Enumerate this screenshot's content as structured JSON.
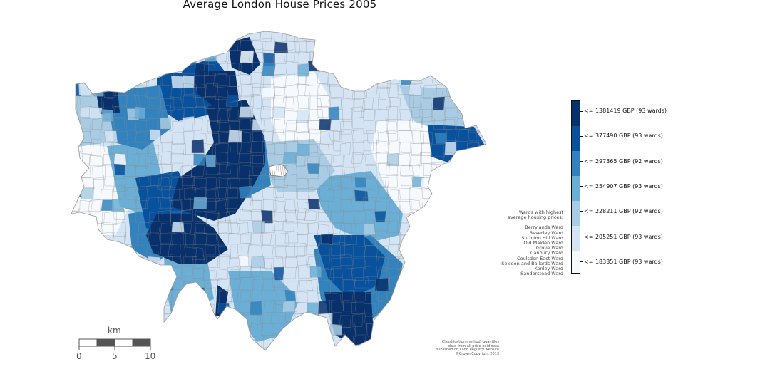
{
  "title": "Average London House Prices 2005",
  "colors": {
    "class1": "#08306b",
    "class2": "#08519c",
    "class3": "#3182bd",
    "class4": "#6baed6",
    "class5": "#a9cce4",
    "class6": "#d4e4f4",
    "class7": "#f6faff",
    "border": "#8a8a8a"
  },
  "legend": {
    "classes": [
      {
        "label": "<= 1381419 GBP (93 wards)",
        "color": "#08306b"
      },
      {
        "label": "<= 377490 GBP (93 wards)",
        "color": "#08519c"
      },
      {
        "label": "<= 297365 GBP (92 wards)",
        "color": "#3182bd"
      },
      {
        "label": "<= 254907 GBP (93 wards)",
        "color": "#6baed6"
      },
      {
        "label": "<= 228211 GBP (92 wards)",
        "color": "#a9cce4"
      },
      {
        "label": "<= 205251 GBP (93 wards)",
        "color": "#d4e4f4"
      },
      {
        "label": "<= 183351 GBP (93 wards)",
        "color": "#f6faff"
      }
    ]
  },
  "wards_note": {
    "heading_line1": "Wards with highest",
    "heading_line2": "average housing prices:",
    "wards": [
      "Berrylands Ward",
      "Beverley Ward",
      "Surbiton Hill Ward",
      "Old Malden Ward",
      "Grove Ward",
      "Canbury Ward",
      "Coulsdon East Ward",
      "Selsdon and Ballards Ward",
      "Kenley Ward",
      "Sanderstead Ward"
    ]
  },
  "scale_bar": {
    "unit": "km",
    "ticks": [
      "0",
      "5",
      "10"
    ]
  },
  "source": {
    "line1": "Classification method: quantiles",
    "line2": "data from all price paid data",
    "line3": "published on Land Registry website",
    "line4": "©Crown Copyright 2013"
  }
}
